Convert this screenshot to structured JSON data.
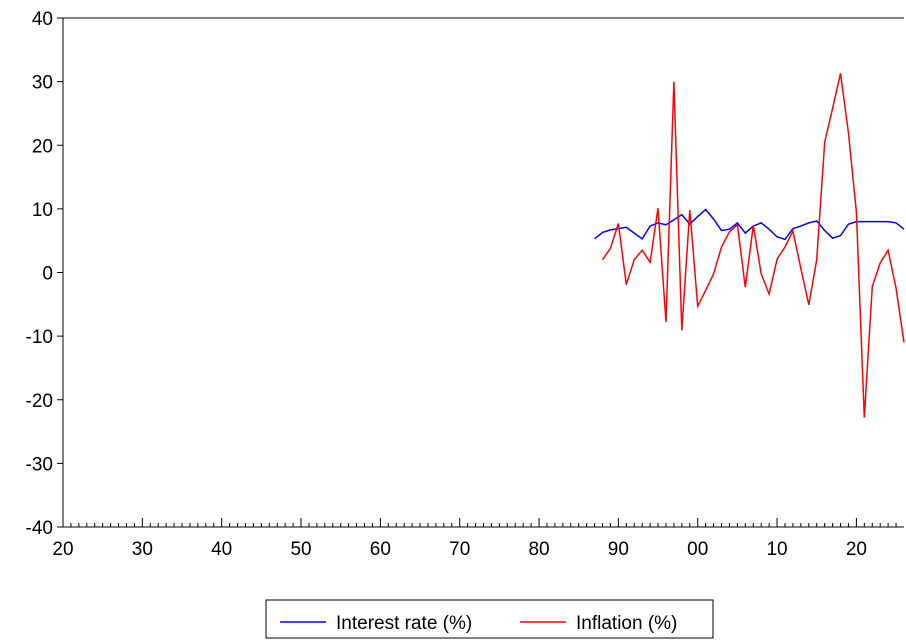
{
  "chart_data": {
    "type": "line",
    "title": "",
    "xlabel": "",
    "ylabel": "",
    "x_range": [
      1920,
      2026
    ],
    "ylim": [
      -40,
      40
    ],
    "y_ticks": [
      -40,
      -30,
      -20,
      -10,
      0,
      10,
      20,
      30,
      40
    ],
    "y_tick_labels": [
      "-40",
      "-30",
      "-20",
      "-10",
      "0",
      "10",
      "20",
      "30",
      "40"
    ],
    "x_ticks": [
      1920,
      1930,
      1940,
      1950,
      1960,
      1970,
      1980,
      1990,
      2000,
      2010,
      2020
    ],
    "x_tick_labels": [
      "20",
      "30",
      "40",
      "50",
      "60",
      "70",
      "80",
      "90",
      "00",
      "10",
      "20"
    ],
    "grid": false,
    "legend_position": "bottom-center",
    "series": [
      {
        "name": "Interest rate (%)",
        "color": "#0000ff",
        "x": [
          1987,
          1988,
          1989,
          1990,
          1991,
          1992,
          1993,
          1994,
          1995,
          1996,
          1997,
          1998,
          1999,
          2000,
          2001,
          2002,
          2003,
          2004,
          2005,
          2006,
          2007,
          2008,
          2009,
          2010,
          2011,
          2012,
          2013,
          2014,
          2015,
          2016,
          2017,
          2018,
          2019,
          2020,
          2021,
          2022,
          2023,
          2024,
          2025,
          2026
        ],
        "y": [
          5.3,
          6.3,
          6.7,
          6.9,
          7.1,
          6.2,
          5.3,
          7.3,
          7.8,
          7.5,
          8.3,
          9.1,
          7.6,
          8.8,
          9.9,
          8.4,
          6.6,
          6.8,
          7.8,
          6.2,
          7.3,
          7.8,
          6.8,
          5.6,
          5.2,
          6.9,
          7.3,
          7.8,
          8.1,
          6.6,
          5.4,
          5.8,
          7.6,
          8.0,
          8.0,
          8.0,
          8.0,
          8.0,
          7.8,
          6.8
        ]
      },
      {
        "name": "Inflation (%)",
        "color": "#ff0000",
        "x": [
          1988,
          1989,
          1990,
          1991,
          1992,
          1993,
          1994,
          1995,
          1996,
          1997,
          1998,
          1999,
          2000,
          2001,
          2002,
          2003,
          2004,
          2005,
          2006,
          2007,
          2008,
          2009,
          2010,
          2011,
          2012,
          2013,
          2014,
          2015,
          2016,
          2017,
          2018,
          2019,
          2020,
          2021,
          2022,
          2023,
          2024,
          2025,
          2026
        ],
        "y": [
          2.0,
          3.8,
          7.7,
          -1.9,
          2.0,
          3.5,
          1.6,
          10.1,
          -7.8,
          30.0,
          -9.1,
          9.8,
          -5.3,
          -2.8,
          -0.2,
          4.0,
          6.4,
          7.5,
          -2.3,
          7.4,
          -0.2,
          -3.4,
          2.1,
          4.0,
          6.5,
          0.6,
          -5.1,
          2.0,
          20.5,
          25.8,
          31.3,
          21.9,
          9.5,
          -22.8,
          -2.2,
          1.5,
          3.5,
          -2.5,
          -11.0
        ]
      }
    ]
  },
  "legend": {
    "items": [
      {
        "label": "Interest rate (%)",
        "color": "#0000ff"
      },
      {
        "label": "Inflation (%)",
        "color": "#ff0000"
      }
    ]
  }
}
